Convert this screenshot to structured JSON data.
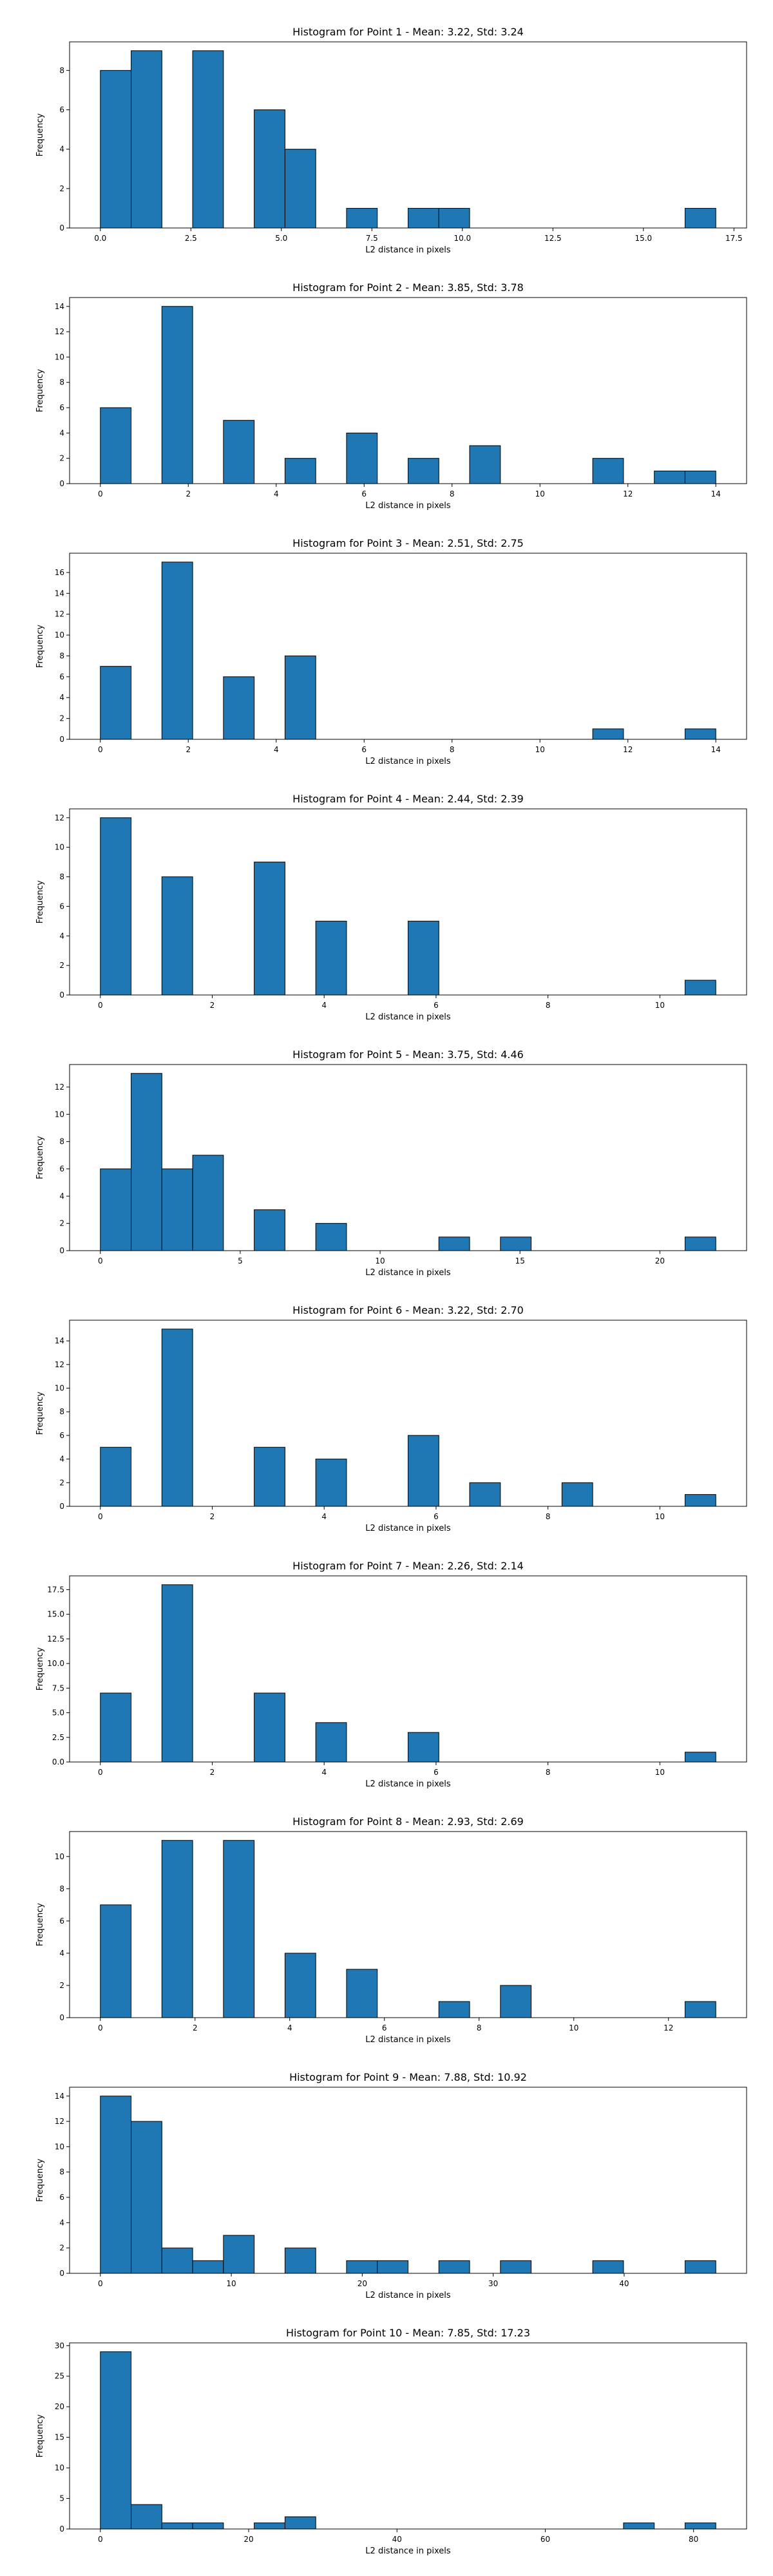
{
  "figure": {
    "bar_color": "#1f77b4",
    "edge_color": "#000000"
  },
  "chart_data": [
    {
      "type": "bar",
      "title": "Histogram for Point 1 - Mean: 3.22, Std: 3.24",
      "xlabel": "L2 distance in pixels",
      "ylabel": "Frequency",
      "xlim": [
        -0.85,
        17.85
      ],
      "ylim": [
        0,
        9.45
      ],
      "xticks": [
        0,
        2.5,
        5,
        7.5,
        10,
        12.5,
        15,
        17.5
      ],
      "xtick_labels": [
        "0.0",
        "2.5",
        "5.0",
        "7.5",
        "10.0",
        "12.5",
        "15.0",
        "17.5"
      ],
      "yticks": [
        0,
        2,
        4,
        6,
        8
      ],
      "ytick_labels": [
        "0",
        "2",
        "4",
        "6",
        "8"
      ],
      "bins": [
        {
          "x0": 0.0,
          "x1": 0.85,
          "count": 8
        },
        {
          "x0": 0.85,
          "x1": 1.7,
          "count": 9
        },
        {
          "x0": 2.55,
          "x1": 3.4,
          "count": 9
        },
        {
          "x0": 4.25,
          "x1": 5.1,
          "count": 6
        },
        {
          "x0": 5.1,
          "x1": 5.95,
          "count": 4
        },
        {
          "x0": 6.8,
          "x1": 7.65,
          "count": 1
        },
        {
          "x0": 8.5,
          "x1": 9.35,
          "count": 1
        },
        {
          "x0": 9.35,
          "x1": 10.2,
          "count": 1
        },
        {
          "x0": 16.15,
          "x1": 17.0,
          "count": 1
        }
      ]
    },
    {
      "type": "bar",
      "title": "Histogram for Point 2 - Mean: 3.85, Std: 3.78",
      "xlabel": "L2 distance in pixels",
      "ylabel": "Frequency",
      "xlim": [
        -0.7,
        14.7
      ],
      "ylim": [
        0,
        14.7
      ],
      "xticks": [
        0,
        2,
        4,
        6,
        8,
        10,
        12,
        14
      ],
      "xtick_labels": [
        "0",
        "2",
        "4",
        "6",
        "8",
        "10",
        "12",
        "14"
      ],
      "yticks": [
        0,
        2,
        4,
        6,
        8,
        10,
        12,
        14
      ],
      "ytick_labels": [
        "0",
        "2",
        "4",
        "6",
        "8",
        "10",
        "12",
        "14"
      ],
      "bins": [
        {
          "x0": 0.0,
          "x1": 0.7,
          "count": 6
        },
        {
          "x0": 1.4,
          "x1": 2.1,
          "count": 14
        },
        {
          "x0": 2.8,
          "x1": 3.5,
          "count": 5
        },
        {
          "x0": 4.2,
          "x1": 4.9,
          "count": 2
        },
        {
          "x0": 5.6,
          "x1": 6.3,
          "count": 4
        },
        {
          "x0": 7.0,
          "x1": 7.7,
          "count": 2
        },
        {
          "x0": 8.4,
          "x1": 9.1,
          "count": 3
        },
        {
          "x0": 11.2,
          "x1": 11.9,
          "count": 2
        },
        {
          "x0": 12.6,
          "x1": 13.3,
          "count": 1
        },
        {
          "x0": 13.3,
          "x1": 14.0,
          "count": 1
        }
      ]
    },
    {
      "type": "bar",
      "title": "Histogram for Point 3 - Mean: 2.51, Std: 2.75",
      "xlabel": "L2 distance in pixels",
      "ylabel": "Frequency",
      "xlim": [
        -0.7,
        14.7
      ],
      "ylim": [
        0,
        17.85
      ],
      "xticks": [
        0,
        2,
        4,
        6,
        8,
        10,
        12,
        14
      ],
      "xtick_labels": [
        "0",
        "2",
        "4",
        "6",
        "8",
        "10",
        "12",
        "14"
      ],
      "yticks": [
        0,
        2,
        4,
        6,
        8,
        10,
        12,
        14,
        16
      ],
      "ytick_labels": [
        "0",
        "2",
        "4",
        "6",
        "8",
        "10",
        "12",
        "14",
        "16"
      ],
      "bins": [
        {
          "x0": 0.0,
          "x1": 0.7,
          "count": 7
        },
        {
          "x0": 1.4,
          "x1": 2.1,
          "count": 17
        },
        {
          "x0": 2.8,
          "x1": 3.5,
          "count": 6
        },
        {
          "x0": 4.2,
          "x1": 4.9,
          "count": 8
        },
        {
          "x0": 11.2,
          "x1": 11.9,
          "count": 1
        },
        {
          "x0": 13.3,
          "x1": 14.0,
          "count": 1
        }
      ]
    },
    {
      "type": "bar",
      "title": "Histogram for Point 4 - Mean: 2.44, Std: 2.39",
      "xlabel": "L2 distance in pixels",
      "ylabel": "Frequency",
      "xlim": [
        -0.55,
        11.55
      ],
      "ylim": [
        0,
        12.6
      ],
      "xticks": [
        0,
        2,
        4,
        6,
        8,
        10
      ],
      "xtick_labels": [
        "0",
        "2",
        "4",
        "6",
        "8",
        "10"
      ],
      "yticks": [
        0,
        2,
        4,
        6,
        8,
        10,
        12
      ],
      "ytick_labels": [
        "0",
        "2",
        "4",
        "6",
        "8",
        "10",
        "12"
      ],
      "bins": [
        {
          "x0": 0.0,
          "x1": 0.55,
          "count": 12
        },
        {
          "x0": 1.1,
          "x1": 1.65,
          "count": 8
        },
        {
          "x0": 2.75,
          "x1": 3.3,
          "count": 9
        },
        {
          "x0": 3.85,
          "x1": 4.4,
          "count": 5
        },
        {
          "x0": 5.5,
          "x1": 6.05,
          "count": 5
        },
        {
          "x0": 10.45,
          "x1": 11.0,
          "count": 1
        }
      ]
    },
    {
      "type": "bar",
      "title": "Histogram for Point 5 - Mean: 3.75, Std: 4.46",
      "xlabel": "L2 distance in pixels",
      "ylabel": "Frequency",
      "xlim": [
        -1.1,
        23.1
      ],
      "ylim": [
        0,
        13.65
      ],
      "xticks": [
        0,
        5,
        10,
        15,
        20
      ],
      "xtick_labels": [
        "0",
        "5",
        "10",
        "15",
        "20"
      ],
      "yticks": [
        0,
        2,
        4,
        6,
        8,
        10,
        12
      ],
      "ytick_labels": [
        "0",
        "2",
        "4",
        "6",
        "8",
        "10",
        "12"
      ],
      "bins": [
        {
          "x0": 0.0,
          "x1": 1.1,
          "count": 6
        },
        {
          "x0": 1.1,
          "x1": 2.2,
          "count": 13
        },
        {
          "x0": 2.2,
          "x1": 3.3,
          "count": 6
        },
        {
          "x0": 3.3,
          "x1": 4.4,
          "count": 7
        },
        {
          "x0": 5.5,
          "x1": 6.6,
          "count": 3
        },
        {
          "x0": 7.7,
          "x1": 8.8,
          "count": 2
        },
        {
          "x0": 12.1,
          "x1": 13.2,
          "count": 1
        },
        {
          "x0": 14.3,
          "x1": 15.4,
          "count": 1
        },
        {
          "x0": 20.9,
          "x1": 22.0,
          "count": 1
        }
      ]
    },
    {
      "type": "bar",
      "title": "Histogram for Point 6 - Mean: 3.22, Std: 2.70",
      "xlabel": "L2 distance in pixels",
      "ylabel": "Frequency",
      "xlim": [
        -0.55,
        11.55
      ],
      "ylim": [
        0,
        15.75
      ],
      "xticks": [
        0,
        2,
        4,
        6,
        8,
        10
      ],
      "xtick_labels": [
        "0",
        "2",
        "4",
        "6",
        "8",
        "10"
      ],
      "yticks": [
        0,
        2,
        4,
        6,
        8,
        10,
        12,
        14
      ],
      "ytick_labels": [
        "0",
        "2",
        "4",
        "6",
        "8",
        "10",
        "12",
        "14"
      ],
      "bins": [
        {
          "x0": 0.0,
          "x1": 0.55,
          "count": 5
        },
        {
          "x0": 1.1,
          "x1": 1.65,
          "count": 15
        },
        {
          "x0": 2.75,
          "x1": 3.3,
          "count": 5
        },
        {
          "x0": 3.85,
          "x1": 4.4,
          "count": 4
        },
        {
          "x0": 5.5,
          "x1": 6.05,
          "count": 6
        },
        {
          "x0": 6.6,
          "x1": 7.15,
          "count": 2
        },
        {
          "x0": 8.25,
          "x1": 8.8,
          "count": 2
        },
        {
          "x0": 10.45,
          "x1": 11.0,
          "count": 1
        }
      ]
    },
    {
      "type": "bar",
      "title": "Histogram for Point 7 - Mean: 2.26, Std: 2.14",
      "xlabel": "L2 distance in pixels",
      "ylabel": "Frequency",
      "xlim": [
        -0.55,
        11.55
      ],
      "ylim": [
        0,
        18.9
      ],
      "xticks": [
        0,
        2,
        4,
        6,
        8,
        10
      ],
      "xtick_labels": [
        "0",
        "2",
        "4",
        "6",
        "8",
        "10"
      ],
      "yticks": [
        0,
        2.5,
        5,
        7.5,
        10,
        12.5,
        15,
        17.5
      ],
      "ytick_labels": [
        "0.0",
        "2.5",
        "5.0",
        "7.5",
        "10.0",
        "12.5",
        "15.0",
        "17.5"
      ],
      "bins": [
        {
          "x0": 0.0,
          "x1": 0.55,
          "count": 7
        },
        {
          "x0": 1.1,
          "x1": 1.65,
          "count": 18
        },
        {
          "x0": 2.75,
          "x1": 3.3,
          "count": 7
        },
        {
          "x0": 3.85,
          "x1": 4.4,
          "count": 4
        },
        {
          "x0": 5.5,
          "x1": 6.05,
          "count": 3
        },
        {
          "x0": 10.45,
          "x1": 11.0,
          "count": 1
        }
      ]
    },
    {
      "type": "bar",
      "title": "Histogram for Point 8 - Mean: 2.93, Std: 2.69",
      "xlabel": "L2 distance in pixels",
      "ylabel": "Frequency",
      "xlim": [
        -0.65,
        13.65
      ],
      "ylim": [
        0,
        11.55
      ],
      "xticks": [
        0,
        2,
        4,
        6,
        8,
        10,
        12
      ],
      "xtick_labels": [
        "0",
        "2",
        "4",
        "6",
        "8",
        "10",
        "12"
      ],
      "yticks": [
        0,
        2,
        4,
        6,
        8,
        10
      ],
      "ytick_labels": [
        "0",
        "2",
        "4",
        "6",
        "8",
        "10"
      ],
      "bins": [
        {
          "x0": 0.0,
          "x1": 0.65,
          "count": 7
        },
        {
          "x0": 1.3,
          "x1": 1.95,
          "count": 11
        },
        {
          "x0": 2.6,
          "x1": 3.25,
          "count": 11
        },
        {
          "x0": 3.9,
          "x1": 4.55,
          "count": 4
        },
        {
          "x0": 5.2,
          "x1": 5.85,
          "count": 3
        },
        {
          "x0": 7.15,
          "x1": 7.8,
          "count": 1
        },
        {
          "x0": 8.45,
          "x1": 9.1,
          "count": 2
        },
        {
          "x0": 12.35,
          "x1": 13.0,
          "count": 1
        }
      ]
    },
    {
      "type": "bar",
      "title": "Histogram for Point 9 - Mean: 7.88, Std: 10.92",
      "xlabel": "L2 distance in pixels",
      "ylabel": "Frequency",
      "xlim": [
        -2.35,
        49.35
      ],
      "ylim": [
        0,
        14.7
      ],
      "xticks": [
        0,
        10,
        20,
        30,
        40
      ],
      "xtick_labels": [
        "0",
        "10",
        "20",
        "30",
        "40"
      ],
      "yticks": [
        0,
        2,
        4,
        6,
        8,
        10,
        12,
        14
      ],
      "ytick_labels": [
        "0",
        "2",
        "4",
        "6",
        "8",
        "10",
        "12",
        "14"
      ],
      "bins": [
        {
          "x0": 0.0,
          "x1": 2.35,
          "count": 14
        },
        {
          "x0": 2.35,
          "x1": 4.7,
          "count": 12
        },
        {
          "x0": 4.7,
          "x1": 7.05,
          "count": 2
        },
        {
          "x0": 7.05,
          "x1": 9.4,
          "count": 1
        },
        {
          "x0": 9.4,
          "x1": 11.75,
          "count": 3
        },
        {
          "x0": 14.1,
          "x1": 16.45,
          "count": 2
        },
        {
          "x0": 18.8,
          "x1": 21.15,
          "count": 1
        },
        {
          "x0": 21.15,
          "x1": 23.5,
          "count": 1
        },
        {
          "x0": 25.85,
          "x1": 28.2,
          "count": 1
        },
        {
          "x0": 30.55,
          "x1": 32.9,
          "count": 1
        },
        {
          "x0": 37.6,
          "x1": 39.95,
          "count": 1
        },
        {
          "x0": 44.65,
          "x1": 47.0,
          "count": 1
        }
      ]
    },
    {
      "type": "bar",
      "title": "Histogram for Point 10 - Mean: 7.85, Std: 17.23",
      "xlabel": "L2 distance in pixels",
      "ylabel": "Frequency",
      "xlim": [
        -4.15,
        87.15
      ],
      "ylim": [
        0,
        30.45
      ],
      "xticks": [
        0,
        20,
        40,
        60,
        80
      ],
      "xtick_labels": [
        "0",
        "20",
        "40",
        "60",
        "80"
      ],
      "yticks": [
        0,
        5,
        10,
        15,
        20,
        25,
        30
      ],
      "ytick_labels": [
        "0",
        "5",
        "10",
        "15",
        "20",
        "25",
        "30"
      ],
      "bins": [
        {
          "x0": 0.0,
          "x1": 4.15,
          "count": 29
        },
        {
          "x0": 4.15,
          "x1": 8.3,
          "count": 4
        },
        {
          "x0": 8.3,
          "x1": 12.45,
          "count": 1
        },
        {
          "x0": 12.45,
          "x1": 16.6,
          "count": 1
        },
        {
          "x0": 20.75,
          "x1": 24.9,
          "count": 1
        },
        {
          "x0": 24.9,
          "x1": 29.05,
          "count": 2
        },
        {
          "x0": 70.55,
          "x1": 74.7,
          "count": 1
        },
        {
          "x0": 78.85,
          "x1": 83.0,
          "count": 1
        }
      ]
    }
  ]
}
